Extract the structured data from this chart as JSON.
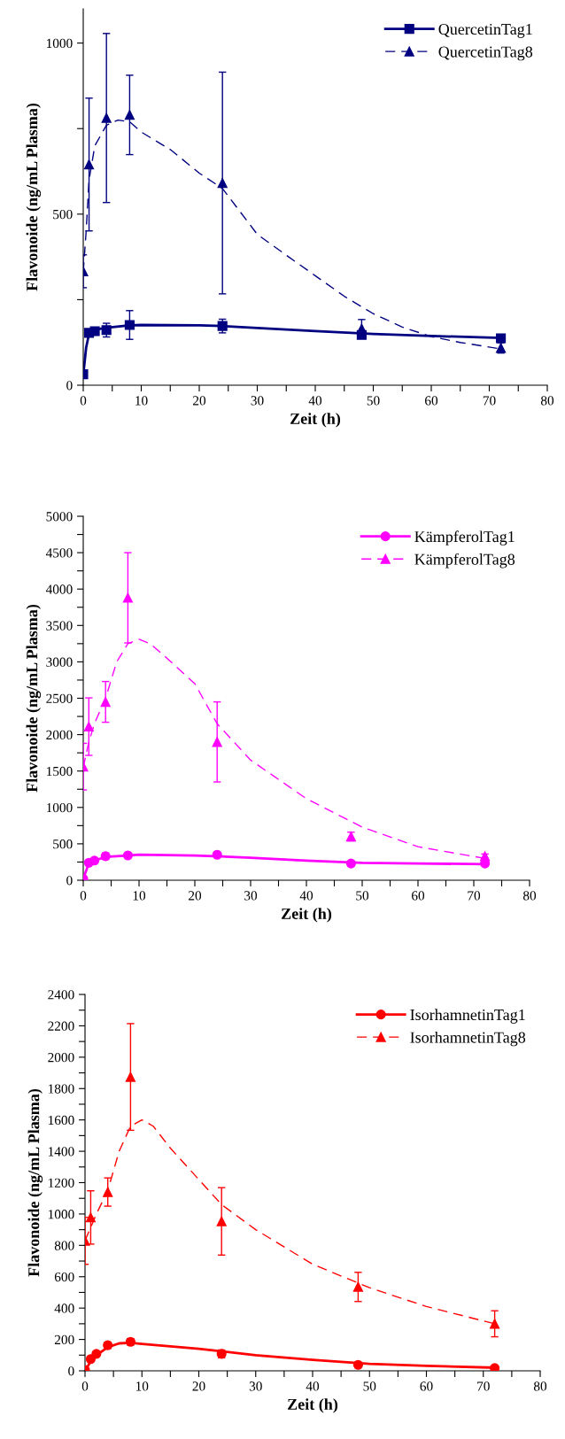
{
  "chart_data": [
    {
      "type": "scatter",
      "xlabel": "Zeit (h)",
      "ylabel": "Flavonoide (ng/mL Plasma)",
      "xlim": [
        0,
        80
      ],
      "ylim": [
        0,
        1100
      ],
      "xticks": [
        0,
        {
          "value": 5,
          "label": null
        },
        10,
        {
          "value": 15,
          "label": null
        },
        20,
        {
          "value": 25,
          "label": null
        },
        30,
        {
          "value": 35,
          "label": null
        },
        40,
        {
          "value": 45,
          "label": null
        },
        50,
        {
          "value": 55,
          "label": null
        },
        60,
        {
          "value": 65,
          "label": null
        },
        70,
        {
          "value": 75,
          "label": null
        },
        80
      ],
      "yticks": [
        0,
        {
          "value": 250,
          "label": null
        },
        500,
        {
          "value": 750,
          "label": null
        },
        1000
      ],
      "grid": false,
      "legend": "top right",
      "series": [
        {
          "name": "QuercetinTag1",
          "color": "#000080",
          "marker": "square",
          "line_style": "solid",
          "x": [
            0,
            1,
            2,
            4,
            8,
            24,
            48,
            72
          ],
          "values": [
            32,
            153,
            158,
            161,
            176,
            173,
            147,
            137
          ],
          "errors": [
            null,
            null,
            null,
            20,
            42,
            20,
            null,
            null
          ]
        },
        {
          "name": "QuercetinTag8",
          "color": "#000080",
          "marker": "triangle",
          "line_style": "dashed",
          "x": [
            0,
            1,
            4,
            8,
            24,
            48,
            72
          ],
          "values": [
            333,
            645,
            781,
            790,
            591,
            165,
            109
          ],
          "errors": [
            48,
            194,
            247,
            116,
            324,
            27,
            15
          ]
        },
        {
          "type": "line",
          "color": "#000080",
          "line_style": "solid",
          "x": [
            0,
            0.5,
            1,
            2,
            4,
            8,
            10,
            20,
            24,
            30,
            40,
            50,
            60,
            72
          ],
          "values": [
            30,
            110,
            150,
            162,
            168,
            175,
            176,
            175,
            173,
            167,
            158,
            150,
            144,
            138
          ]
        },
        {
          "type": "line",
          "color": "#000080",
          "line_style": "dashed",
          "x": [
            0,
            0.5,
            1,
            2,
            4,
            6,
            8,
            10,
            15,
            20,
            24,
            30,
            35,
            40,
            45,
            50,
            55,
            60,
            65,
            72
          ],
          "values": [
            330,
            450,
            600,
            700,
            760,
            775,
            770,
            740,
            689,
            620,
            575,
            441,
            380,
            320,
            260,
            209,
            170,
            142,
            125,
            106
          ]
        }
      ]
    },
    {
      "type": "scatter",
      "xlabel": "Zeit (h)",
      "ylabel": "Flavonoide (ng/mL Plasma)",
      "xlim": [
        0,
        80
      ],
      "ylim": [
        0,
        5000
      ],
      "xticks": [
        0,
        {
          "value": 5,
          "label": null
        },
        10,
        {
          "value": 15,
          "label": null
        },
        20,
        {
          "value": 25,
          "label": null
        },
        30,
        {
          "value": 35,
          "label": null
        },
        40,
        {
          "value": 45,
          "label": null
        },
        50,
        {
          "value": 55,
          "label": null
        },
        60,
        {
          "value": 65,
          "label": null
        },
        70,
        {
          "value": 75,
          "label": null
        },
        80
      ],
      "yticks": [
        0,
        {
          "value": 250,
          "label": null
        },
        500,
        {
          "value": 750,
          "label": null
        },
        1000,
        {
          "value": 1250,
          "label": null
        },
        1500,
        {
          "value": 1750,
          "label": null
        },
        2000,
        {
          "value": 2250,
          "label": null
        },
        2500,
        {
          "value": 2750,
          "label": null
        },
        3000,
        {
          "value": 3250,
          "label": null
        },
        3500,
        {
          "value": 3750,
          "label": null
        },
        4000,
        {
          "value": 4250,
          "label": null
        },
        4500,
        {
          "value": 4750,
          "label": null
        },
        5000
      ],
      "grid": false,
      "legend": "top right",
      "series": [
        {
          "name": "KämpferolTag1",
          "color": "#ff00ff",
          "marker": "circle",
          "line_style": "solid",
          "x": [
            0,
            1,
            2,
            4,
            8,
            24,
            48,
            72
          ],
          "values": [
            20,
            240,
            270,
            330,
            340,
            350,
            230,
            230
          ],
          "errors": [
            null,
            null,
            null,
            45,
            null,
            null,
            null,
            null
          ]
        },
        {
          "name": "KämpferolTag8",
          "color": "#ff00ff",
          "marker": "triangle",
          "line_style": "dashed",
          "x": [
            0,
            1,
            4,
            8,
            24,
            48,
            72
          ],
          "values": [
            1560,
            2110,
            2450,
            3880,
            1900,
            600,
            330
          ],
          "errors": [
            320,
            395,
            280,
            620,
            550,
            60,
            30
          ]
        },
        {
          "type": "line",
          "color": "#ff00ff",
          "line_style": "solid",
          "x": [
            0,
            1,
            2,
            4,
            8,
            10,
            20,
            30,
            40,
            50,
            60,
            72
          ],
          "values": [
            20,
            230,
            270,
            320,
            340,
            350,
            340,
            310,
            270,
            240,
            230,
            220
          ]
        },
        {
          "type": "line",
          "color": "#ff00ff",
          "line_style": "dashed",
          "x": [
            0,
            1,
            2,
            4,
            6,
            8,
            10,
            12,
            15,
            20,
            24,
            30,
            40,
            50,
            60,
            72
          ],
          "values": [
            1550,
            1900,
            2150,
            2500,
            3000,
            3250,
            3310,
            3250,
            3050,
            2700,
            2150,
            1650,
            1120,
            730,
            460,
            300
          ]
        }
      ]
    },
    {
      "type": "scatter",
      "xlabel": "Zeit (h)",
      "ylabel": "Flavonoide (ng/mL Plasma)",
      "xlim": [
        0,
        80
      ],
      "ylim": [
        0,
        2400
      ],
      "xticks": [
        0,
        {
          "value": 5,
          "label": null
        },
        10,
        {
          "value": 15,
          "label": null
        },
        20,
        {
          "value": 25,
          "label": null
        },
        30,
        {
          "value": 35,
          "label": null
        },
        40,
        {
          "value": 45,
          "label": null
        },
        50,
        {
          "value": 55,
          "label": null
        },
        60,
        {
          "value": 65,
          "label": null
        },
        70,
        {
          "value": 75,
          "label": null
        },
        80
      ],
      "yticks": [
        0,
        {
          "value": 100,
          "label": null
        },
        200,
        {
          "value": 300,
          "label": null
        },
        400,
        {
          "value": 500,
          "label": null
        },
        600,
        {
          "value": 700,
          "label": null
        },
        800,
        {
          "value": 900,
          "label": null
        },
        1000,
        {
          "value": 1100,
          "label": null
        },
        1200,
        {
          "value": 1300,
          "label": null
        },
        1400,
        {
          "value": 1500,
          "label": null
        },
        1600,
        {
          "value": 1700,
          "label": null
        },
        1800,
        {
          "value": 1900,
          "label": null
        },
        2000,
        {
          "value": 2100,
          "label": null
        },
        2200,
        {
          "value": 2300,
          "label": null
        },
        2400
      ],
      "grid": false,
      "legend": "top right",
      "series": [
        {
          "name": "IsorhamnetinTag1",
          "color": "#ff0000",
          "marker": "circle",
          "line_style": "solid",
          "x": [
            0,
            1,
            2,
            4,
            8,
            24,
            48,
            72
          ],
          "values": [
            5,
            75,
            108,
            163,
            185,
            108,
            38,
            18
          ],
          "errors": [
            null,
            null,
            null,
            20,
            20,
            25,
            null,
            null
          ]
        },
        {
          "name": "IsorhamnetinTag8",
          "color": "#ff0000",
          "marker": "triangle",
          "line_style": "dashed",
          "x": [
            0,
            1,
            4,
            8,
            24,
            48,
            72
          ],
          "values": [
            829,
            978,
            1140,
            1874,
            953,
            535,
            300
          ],
          "errors": [
            150,
            170,
            90,
            340,
            215,
            93,
            83
          ]
        },
        {
          "type": "line",
          "color": "#ff0000",
          "line_style": "solid",
          "x": [
            0,
            1,
            2,
            4,
            6,
            8,
            10,
            20,
            30,
            40,
            50,
            60,
            72
          ],
          "values": [
            0,
            60,
            100,
            150,
            175,
            178,
            172,
            140,
            100,
            70,
            45,
            32,
            20
          ]
        },
        {
          "type": "line",
          "color": "#ff0000",
          "line_style": "dashed",
          "x": [
            0,
            2,
            4,
            6,
            8,
            10,
            12,
            15,
            20,
            24,
            30,
            40,
            50,
            60,
            72
          ],
          "values": [
            830,
            1000,
            1150,
            1400,
            1560,
            1600,
            1560,
            1420,
            1220,
            1060,
            900,
            680,
            530,
            410,
            300
          ]
        }
      ]
    }
  ]
}
